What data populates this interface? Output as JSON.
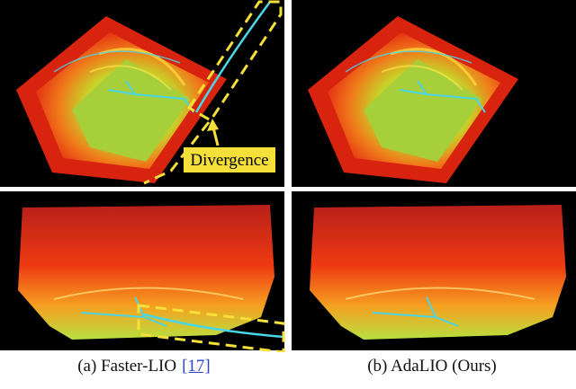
{
  "figure": {
    "panels": [
      {
        "caption": "(a) Faster-LIO",
        "citation": "[17]",
        "annotation": "Divergence"
      },
      {
        "caption": "(b) AdaLIO (Ours)"
      }
    ]
  }
}
